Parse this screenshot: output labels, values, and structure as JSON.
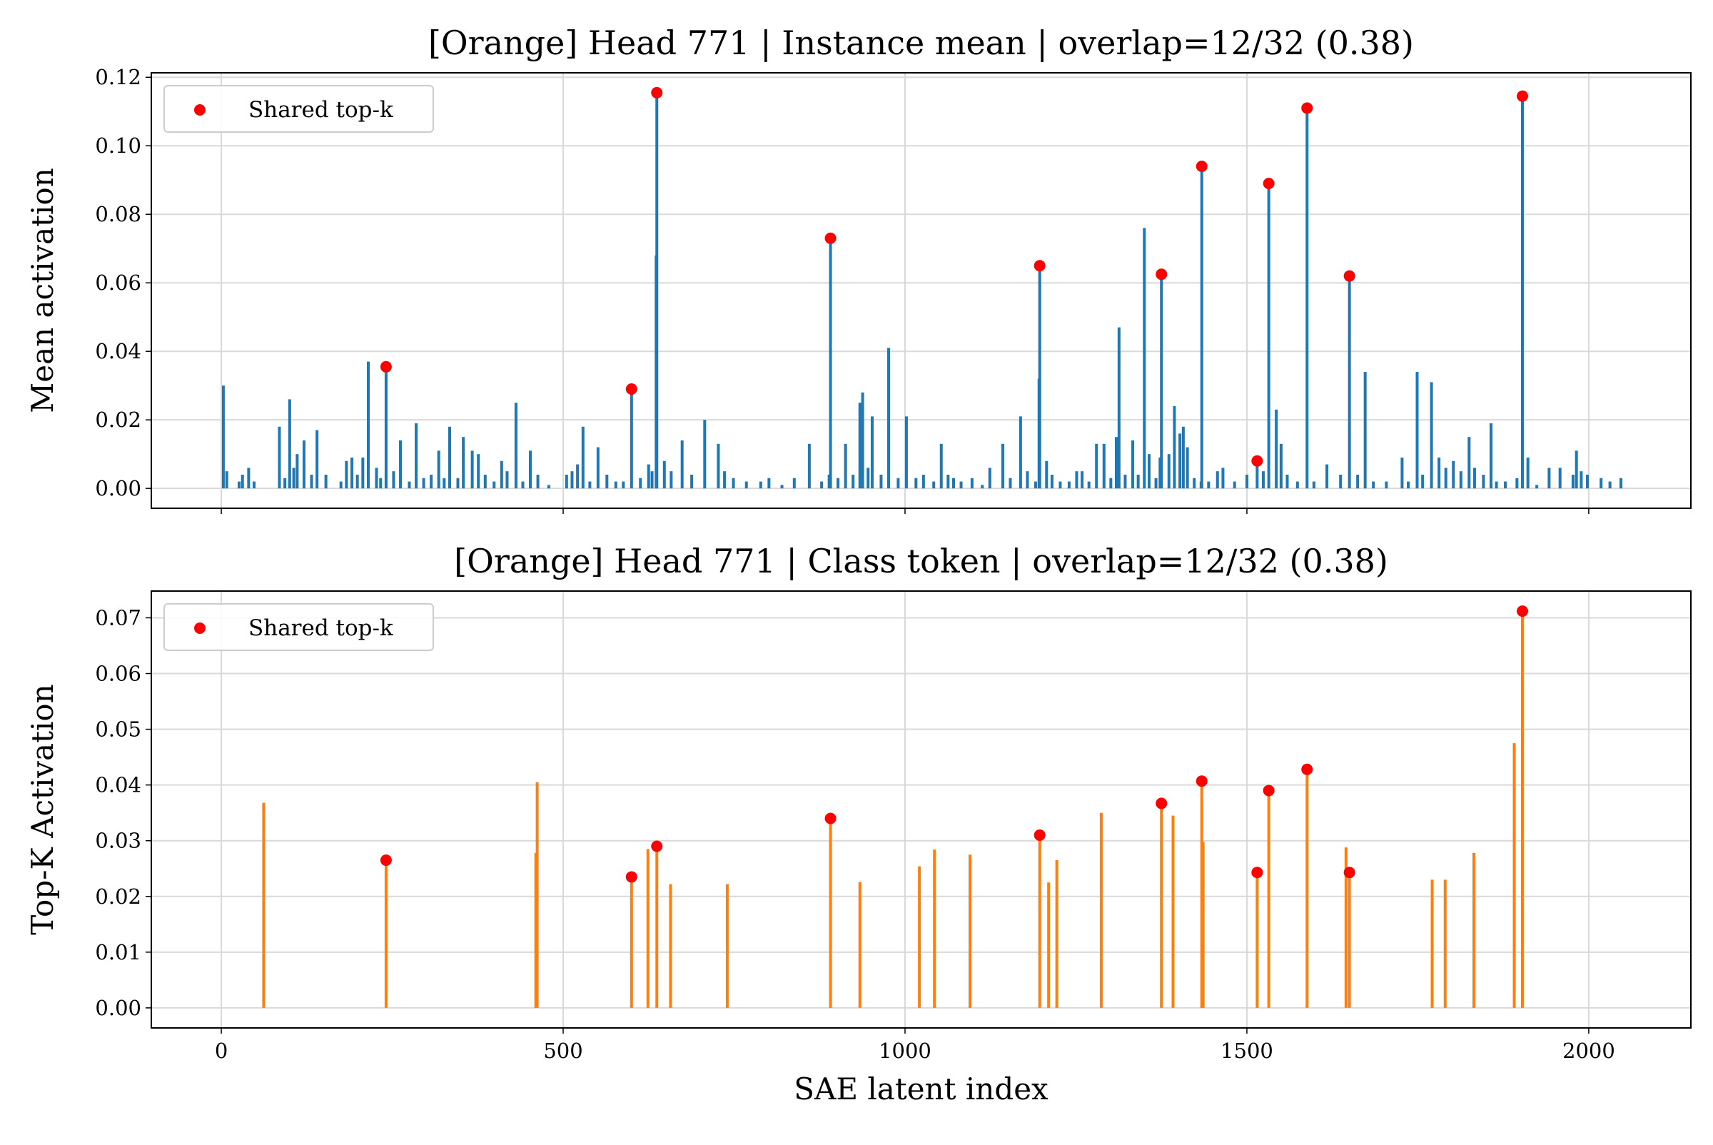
{
  "chart_data": [
    {
      "type": "bar",
      "title": "[Orange] Head 771 | Instance mean | overlap=12/32 (0.38)",
      "ylabel": "Mean activation",
      "color": "#1f77b4",
      "grid": true,
      "legend": "upper left",
      "x": [
        3,
        8,
        26,
        31,
        40,
        48,
        85,
        93,
        100,
        106,
        111,
        121,
        132,
        140,
        153,
        175,
        183,
        191,
        199,
        207,
        215,
        227,
        233,
        241,
        252,
        262,
        275,
        285,
        296,
        307,
        318,
        326,
        334,
        346,
        354,
        367,
        376,
        386,
        399,
        410,
        418,
        431,
        441,
        452,
        463,
        479,
        505,
        513,
        521,
        529,
        539,
        551,
        564,
        577,
        588,
        600,
        613,
        625,
        630,
        636,
        637,
        648,
        658,
        674,
        688,
        707,
        727,
        736,
        749,
        768,
        789,
        801,
        820,
        838,
        860,
        878,
        889,
        891,
        902,
        913,
        924,
        934,
        938,
        946,
        952,
        965,
        976,
        990,
        1002,
        1016,
        1027,
        1042,
        1053,
        1063,
        1071,
        1082,
        1098,
        1113,
        1124,
        1143,
        1154,
        1169,
        1179,
        1191,
        1196,
        1197,
        1207,
        1215,
        1227,
        1240,
        1251,
        1259,
        1269,
        1280,
        1291,
        1301,
        1309,
        1313,
        1322,
        1333,
        1341,
        1350,
        1357,
        1367,
        1373,
        1375,
        1386,
        1394,
        1402,
        1407,
        1413,
        1423,
        1433,
        1434,
        1444,
        1457,
        1465,
        1482,
        1500,
        1515,
        1524,
        1532,
        1543,
        1550,
        1559,
        1574,
        1588,
        1598,
        1617,
        1637,
        1650,
        1662,
        1673,
        1685,
        1704,
        1727,
        1736,
        1749,
        1757,
        1770,
        1781,
        1791,
        1802,
        1813,
        1825,
        1833,
        1846,
        1857,
        1865,
        1878,
        1895,
        1903,
        1911,
        1924,
        1942,
        1958,
        1977,
        1982,
        1989,
        1998,
        2018,
        2031,
        2047
      ],
      "values": [
        0.03,
        0.005,
        0.002,
        0.004,
        0.006,
        0.002,
        0.018,
        0.003,
        0.026,
        0.006,
        0.01,
        0.014,
        0.004,
        0.017,
        0.004,
        0.002,
        0.008,
        0.009,
        0.004,
        0.009,
        0.037,
        0.006,
        0.003,
        0.0355,
        0.005,
        0.014,
        0.002,
        0.019,
        0.003,
        0.004,
        0.011,
        0.003,
        0.018,
        0.003,
        0.015,
        0.011,
        0.01,
        0.004,
        0.002,
        0.008,
        0.005,
        0.025,
        0.002,
        0.011,
        0.004,
        0.001,
        0.004,
        0.005,
        0.007,
        0.018,
        0.002,
        0.012,
        0.004,
        0.002,
        0.002,
        0.029,
        0.003,
        0.007,
        0.005,
        0.068,
        0.1155,
        0.008,
        0.005,
        0.014,
        0.004,
        0.02,
        0.013,
        0.005,
        0.003,
        0.002,
        0.002,
        0.003,
        0.001,
        0.003,
        0.013,
        0.002,
        0.004,
        0.073,
        0.003,
        0.013,
        0.004,
        0.025,
        0.028,
        0.006,
        0.021,
        0.004,
        0.041,
        0.003,
        0.021,
        0.003,
        0.004,
        0.002,
        0.013,
        0.004,
        0.003,
        0.002,
        0.003,
        0.001,
        0.006,
        0.013,
        0.003,
        0.021,
        0.005,
        0.002,
        0.032,
        0.065,
        0.008,
        0.004,
        0.002,
        0.002,
        0.005,
        0.005,
        0.002,
        0.013,
        0.013,
        0.003,
        0.015,
        0.047,
        0.004,
        0.014,
        0.004,
        0.076,
        0.01,
        0.003,
        0.009,
        0.0625,
        0.01,
        0.024,
        0.016,
        0.018,
        0.012,
        0.003,
        0.002,
        0.094,
        0.002,
        0.005,
        0.006,
        0.002,
        0.004,
        0.008,
        0.005,
        0.089,
        0.023,
        0.013,
        0.004,
        0.002,
        0.111,
        0.002,
        0.007,
        0.004,
        0.062,
        0.004,
        0.034,
        0.002,
        0.002,
        0.009,
        0.002,
        0.034,
        0.004,
        0.031,
        0.009,
        0.006,
        0.008,
        0.005,
        0.015,
        0.006,
        0.004,
        0.019,
        0.002,
        0.002,
        0.003,
        0.1145,
        0.009,
        0.001,
        0.006,
        0.006,
        0.004,
        0.011,
        0.005,
        0.004,
        0.003,
        0.002,
        0.003
      ],
      "markers": {
        "name": "Shared top-k",
        "color": "#ff0000",
        "x": [
          241,
          600,
          637,
          891,
          1197,
          1375,
          1434,
          1515,
          1532,
          1588,
          1650,
          1903
        ],
        "values": [
          0.0355,
          0.029,
          0.1155,
          0.073,
          0.065,
          0.0625,
          0.094,
          0.008,
          0.089,
          0.111,
          0.062,
          0.1145
        ]
      },
      "xlim": [
        -102.35,
        2149.35
      ],
      "ylim": [
        -0.0058,
        0.1213
      ],
      "yticks": [
        {
          "value": 0,
          "label": "0.00"
        },
        0.02,
        0.04,
        0.06,
        0.08,
        {
          "value": 0.1,
          "label": "0.10"
        },
        0.12
      ]
    },
    {
      "type": "bar",
      "title": "[Orange] Head 771 | Class token | overlap=12/32 (0.38)",
      "ylabel": "Top-K Activation",
      "xlabel": "SAE latent index",
      "color": "#ff7f0e",
      "grid": true,
      "legend": "upper left",
      "x": [
        62,
        241,
        460,
        462,
        600,
        624,
        637,
        657,
        740,
        891,
        934,
        1021,
        1043,
        1095,
        1197,
        1210,
        1222,
        1287,
        1375,
        1392,
        1434,
        1436,
        1515,
        1532,
        1588,
        1645,
        1650,
        1771,
        1790,
        1832,
        1891,
        1903
      ],
      "values": [
        0.0368,
        0.0265,
        0.0278,
        0.0405,
        0.0235,
        0.0285,
        0.029,
        0.0222,
        0.0222,
        0.034,
        0.0226,
        0.0254,
        0.0284,
        0.0275,
        0.031,
        0.0225,
        0.0265,
        0.035,
        0.0367,
        0.0345,
        0.0407,
        0.0298,
        0.0243,
        0.039,
        0.0428,
        0.0288,
        0.0243,
        0.023,
        0.023,
        0.0278,
        0.0475,
        0.0712
      ],
      "markers": {
        "name": "Shared top-k",
        "color": "#ff0000",
        "x": [
          241,
          600,
          637,
          891,
          1197,
          1375,
          1434,
          1515,
          1532,
          1588,
          1650,
          1903
        ],
        "values": [
          0.0265,
          0.0235,
          0.029,
          0.034,
          0.031,
          0.0367,
          0.0407,
          0.0243,
          0.039,
          0.0428,
          0.0243,
          0.0712
        ]
      },
      "xlim": [
        -102.35,
        2149.35
      ],
      "ylim": [
        -0.0036,
        0.0748
      ],
      "xticks": [
        0,
        500,
        1000,
        1500,
        2000
      ],
      "yticks": [
        {
          "value": 0,
          "label": "0.00"
        },
        0.01,
        0.02,
        0.03,
        0.04,
        0.05,
        0.06,
        0.07
      ]
    }
  ]
}
